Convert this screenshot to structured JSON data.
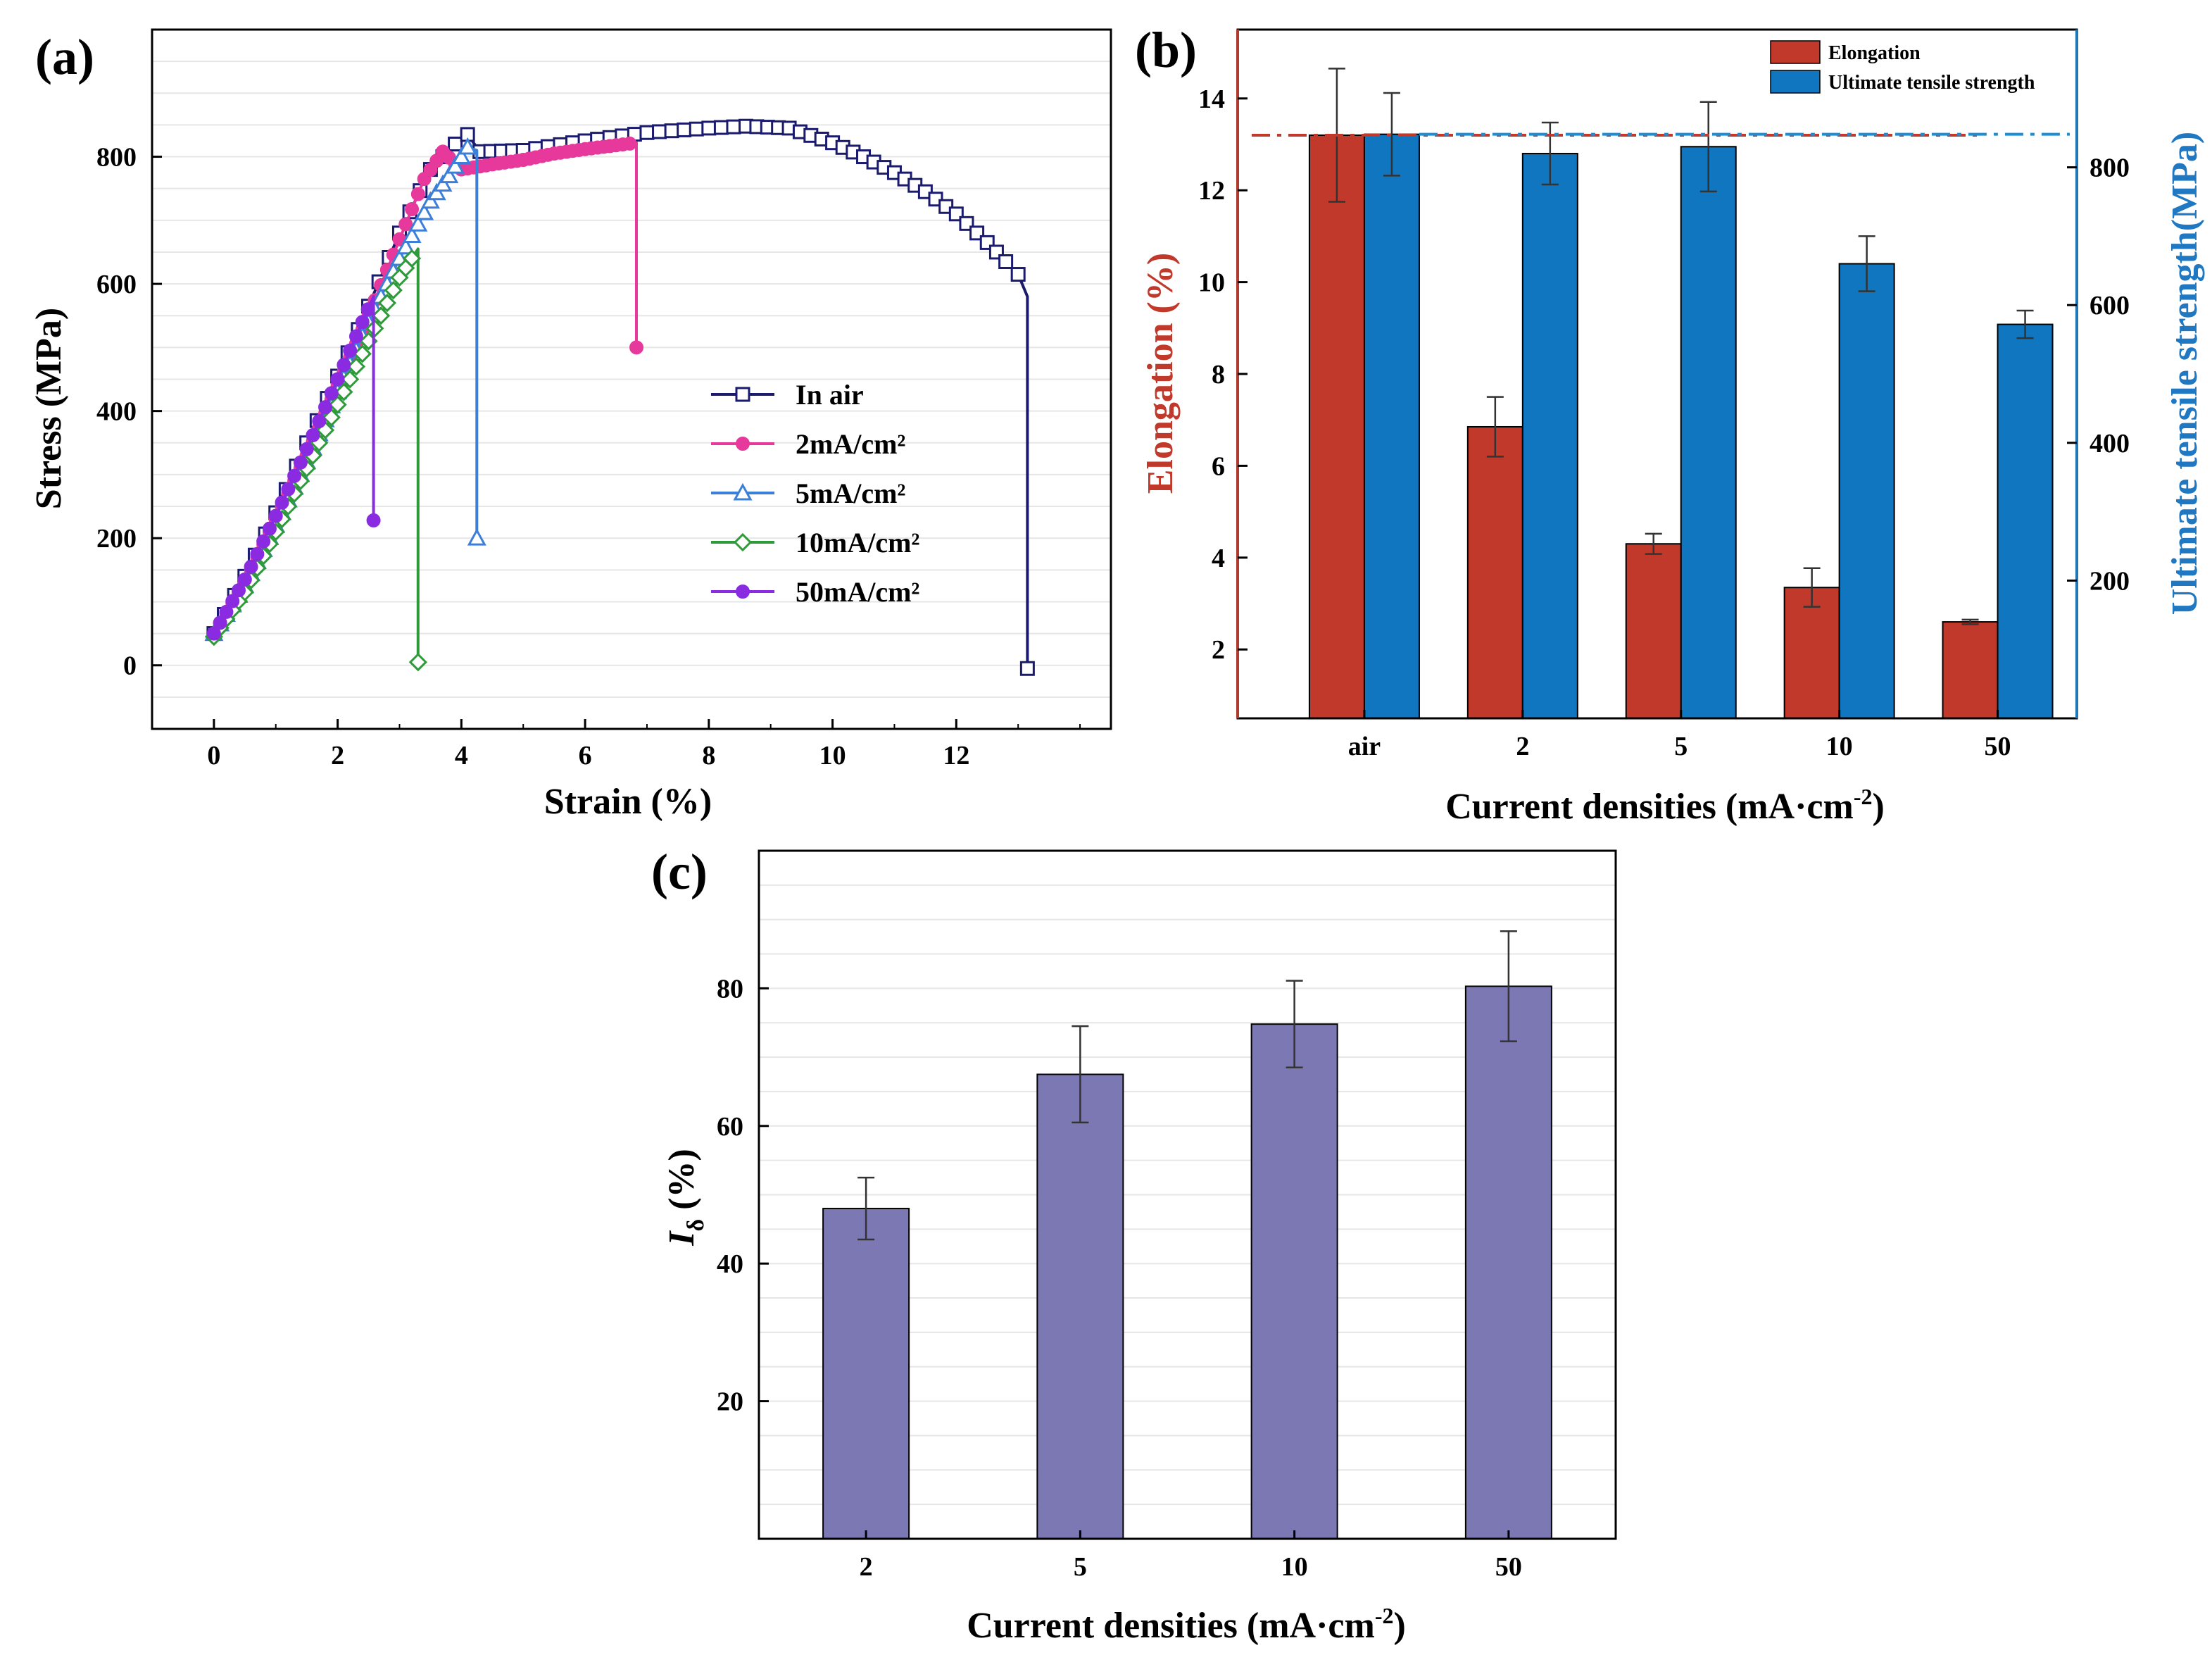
{
  "chart_data": [
    {
      "id": "a",
      "type": "line",
      "panel_label": "(a)",
      "xlabel": "Strain (%)",
      "ylabel": "Stress (MPa)",
      "xlim": [
        -1,
        14.5
      ],
      "ylim": [
        -100,
        1000
      ],
      "xticks": [
        0,
        2,
        4,
        6,
        8,
        10,
        12
      ],
      "yticks": [
        0,
        200,
        400,
        600,
        800
      ],
      "legend_position": "right-center",
      "series": [
        {
          "name": "In air",
          "color": "#1a1a6e",
          "marker": "square",
          "points": [
            [
              0,
              50
            ],
            [
              0.5,
              140
            ],
            [
              1.0,
              240
            ],
            [
              1.5,
              350
            ],
            [
              2.0,
              455
            ],
            [
              2.5,
              565
            ],
            [
              3.0,
              680
            ],
            [
              3.5,
              780
            ],
            [
              3.9,
              820
            ],
            [
              4.1,
              835
            ],
            [
              4.3,
              808
            ],
            [
              5.0,
              810
            ],
            [
              6.0,
              825
            ],
            [
              7.0,
              838
            ],
            [
              8.0,
              845
            ],
            [
              8.6,
              848
            ],
            [
              9.3,
              845
            ],
            [
              10.0,
              822
            ],
            [
              10.5,
              800
            ],
            [
              11.0,
              775
            ],
            [
              11.5,
              745
            ],
            [
              12.0,
              710
            ],
            [
              12.5,
              665
            ],
            [
              12.8,
              635
            ],
            [
              13.0,
              615
            ],
            [
              13.15,
              580
            ],
            [
              13.15,
              -5
            ]
          ]
        },
        {
          "name": "2mA/cm²",
          "color": "#e6399b",
          "marker": "circle",
          "points": [
            [
              0,
              50
            ],
            [
              0.5,
              130
            ],
            [
              1.0,
              230
            ],
            [
              1.5,
              330
            ],
            [
              2.0,
              440
            ],
            [
              2.5,
              550
            ],
            [
              3.0,
              670
            ],
            [
              3.4,
              765
            ],
            [
              3.7,
              808
            ],
            [
              4.0,
              780
            ],
            [
              4.5,
              788
            ],
            [
              5.0,
              795
            ],
            [
              5.5,
              805
            ],
            [
              6.0,
              812
            ],
            [
              6.5,
              818
            ],
            [
              6.83,
              822
            ],
            [
              6.83,
              500
            ]
          ]
        },
        {
          "name": "5mA/cm²",
          "color": "#3c7fd9",
          "marker": "triangle",
          "points": [
            [
              0,
              50
            ],
            [
              0.5,
              125
            ],
            [
              1.0,
              220
            ],
            [
              1.5,
              320
            ],
            [
              2.0,
              430
            ],
            [
              2.5,
              540
            ],
            [
              3.0,
              640
            ],
            [
              3.5,
              730
            ],
            [
              3.8,
              770
            ],
            [
              4.1,
              815
            ],
            [
              4.25,
              810
            ],
            [
              4.25,
              200
            ]
          ]
        },
        {
          "name": "10mA/cm²",
          "color": "#2e9a3a",
          "marker": "diamond",
          "points": [
            [
              0,
              45
            ],
            [
              0.5,
              115
            ],
            [
              1.0,
              210
            ],
            [
              1.5,
              310
            ],
            [
              2.0,
              410
            ],
            [
              2.5,
              510
            ],
            [
              3.0,
              610
            ],
            [
              3.3,
              655
            ],
            [
              3.3,
              5
            ]
          ]
        },
        {
          "name": "50mA/cm²",
          "color": "#8a2be2",
          "marker": "circle",
          "points": [
            [
              0,
              50
            ],
            [
              0.5,
              135
            ],
            [
              1.0,
              235
            ],
            [
              1.5,
              340
            ],
            [
              2.0,
              450
            ],
            [
              2.4,
              540
            ],
            [
              2.58,
              580
            ],
            [
              2.58,
              228
            ]
          ]
        }
      ]
    },
    {
      "id": "b",
      "type": "bar",
      "panel_label": "(b)",
      "xlabel": "Current densities (mA·cm",
      "xlabel_sup": "-2",
      "xlabel_end": ")",
      "ylabel_left": "Elongation (%)",
      "ylabel_right": "Ultimate tensile strength(MPa)",
      "categories": [
        "air",
        "2",
        "5",
        "10",
        "50"
      ],
      "ylim_left": [
        0.5,
        15.5
      ],
      "yticks_left": [
        2,
        4,
        6,
        8,
        10,
        12,
        14
      ],
      "ylim_right": [
        0,
        1000
      ],
      "yticks_right": [
        200,
        400,
        600,
        800
      ],
      "series": [
        {
          "name": "Elongation",
          "axis": "left",
          "color": "#c0392b",
          "values": [
            13.2,
            6.85,
            4.3,
            3.35,
            2.6
          ],
          "errors": [
            1.45,
            0.65,
            0.22,
            0.42,
            0.05
          ]
        },
        {
          "name": "Ultimate tensile strength",
          "axis": "right",
          "color": "#0f76bf",
          "values": [
            848,
            820,
            830,
            660,
            572
          ],
          "errors": [
            60,
            45,
            65,
            40,
            20
          ]
        }
      ],
      "reference_lines": [
        {
          "axis": "left",
          "value": 13.2,
          "color": "#c0392b"
        },
        {
          "axis": "right",
          "value": 848,
          "color": "#1b8fd6"
        }
      ],
      "legend_position": "top-right"
    },
    {
      "id": "c",
      "type": "bar",
      "panel_label": "(c)",
      "xlabel": "Current densities (mA·cm",
      "xlabel_sup": "-2",
      "xlabel_end": ")",
      "ylabel": "I",
      "ylabel_sub": "δ",
      "ylabel_end": " (%)",
      "categories": [
        "2",
        "5",
        "10",
        "50"
      ],
      "values": [
        48,
        67.5,
        74.8,
        80.3
      ],
      "errors": [
        4.5,
        7,
        6.3,
        8
      ],
      "ylim": [
        0,
        100
      ],
      "yticks": [
        20,
        40,
        60,
        80
      ],
      "color": "#7b78b3"
    }
  ]
}
